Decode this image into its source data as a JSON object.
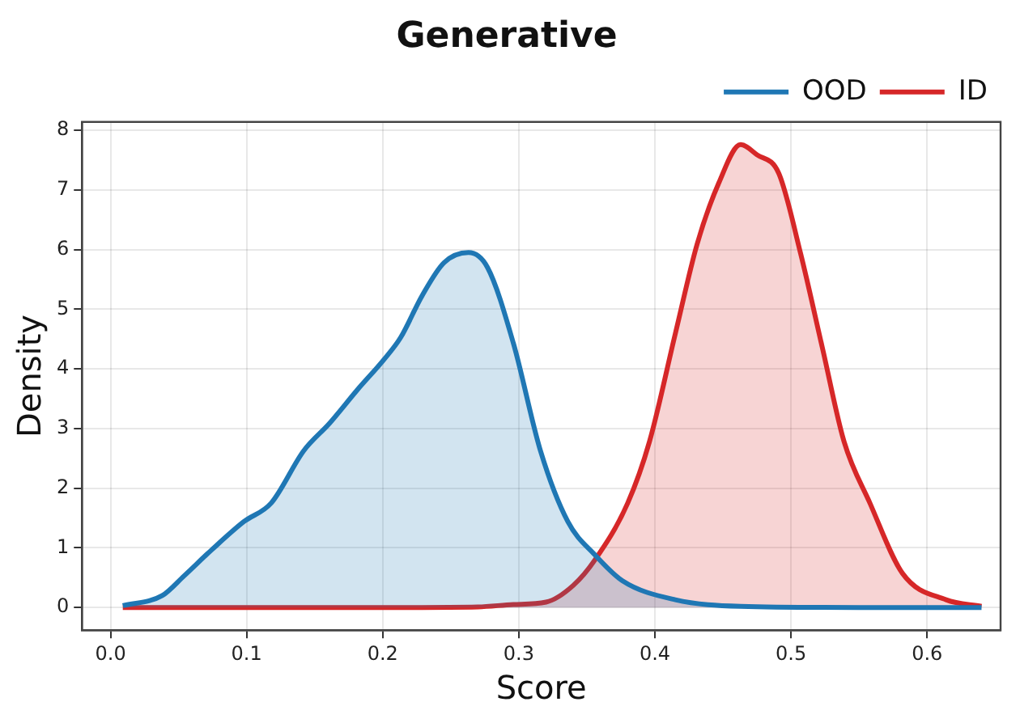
{
  "chart_data": {
    "type": "area",
    "title": "Generative",
    "xlabel": "Score",
    "ylabel": "Density",
    "xlim": [
      -0.021,
      0.654
    ],
    "xticks": [
      {
        "value": 0,
        "label": "0.0"
      },
      0.1,
      0.2,
      0.3,
      0.4,
      0.5,
      0.6
    ],
    "ylim": [
      -0.38,
      8.14
    ],
    "yticks": [
      0,
      1,
      2,
      3,
      4,
      5,
      6,
      7,
      8
    ],
    "grid": true,
    "legend": "top right",
    "marker": "none",
    "line_style": "solid",
    "series": [
      {
        "name": "OOD",
        "color": "#1f77b4",
        "x": [
          0.009,
          0.038,
          0.054,
          0.074,
          0.098,
          0.118,
          0.142,
          0.161,
          0.181,
          0.201,
          0.213,
          0.229,
          0.245,
          0.263,
          0.277,
          0.296,
          0.316,
          0.336,
          0.356,
          0.376,
          0.415,
          0.463,
          0.55,
          0.64
        ],
        "values": [
          0.03,
          0.2,
          0.53,
          0.96,
          1.44,
          1.75,
          2.63,
          3.09,
          3.64,
          4.16,
          4.52,
          5.23,
          5.78,
          5.95,
          5.7,
          4.43,
          2.62,
          1.44,
          0.88,
          0.45,
          0.13,
          0.02,
          0,
          0
        ]
      },
      {
        "name": "ID",
        "color": "#d62728",
        "x": [
          0.009,
          0.1,
          0.2,
          0.27,
          0.296,
          0.32,
          0.34,
          0.356,
          0.38,
          0.396,
          0.415,
          0.431,
          0.447,
          0.463,
          0.475,
          0.491,
          0.507,
          0.523,
          0.539,
          0.558,
          0.582,
          0.614,
          0.64
        ],
        "values": [
          0,
          0,
          0,
          0.01,
          0.05,
          0.09,
          0.37,
          0.8,
          1.75,
          2.78,
          4.59,
          6.09,
          7.12,
          7.76,
          7.59,
          7.28,
          5.94,
          4.36,
          2.78,
          1.75,
          0.57,
          0.13,
          0.02
        ]
      }
    ]
  }
}
